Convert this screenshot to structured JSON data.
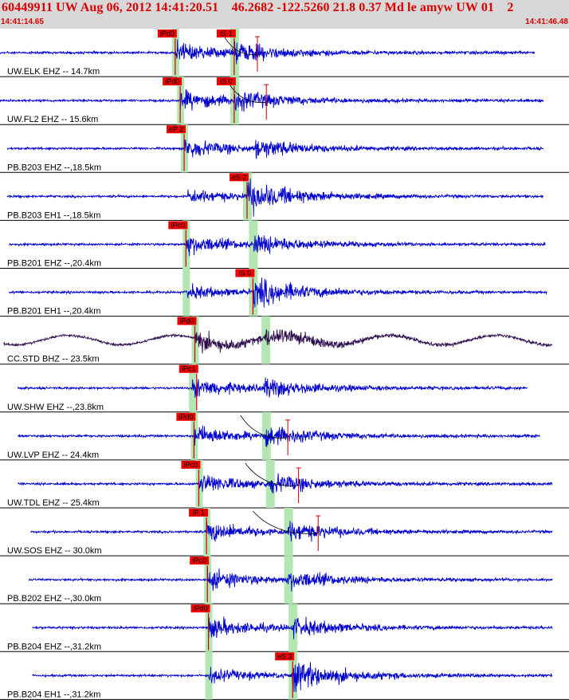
{
  "header": {
    "title": "60449911 UW Aug 06, 2012 14:41:20.51    46.2682 -122.5260 21.8 0.37 Md le amyw UW 01    2",
    "time_start": "14:41:14.65",
    "time_end": "14:41:46.48"
  },
  "colors": {
    "background": "#ffffff",
    "header_bg": "#d8d8d8",
    "header_text": "#d80000",
    "trace_default": "#0000cc",
    "trace_broadband": "#2a0a4a",
    "pick_label_bg": "#ee0000",
    "pick_line": "#cc0000",
    "pick_band": "#b4e6b4",
    "separator": "#000000",
    "theoretical_curve": "#000000"
  },
  "chart_data": {
    "type": "seismogram",
    "x_axis": {
      "unit": "s",
      "range": [
        "14:41:14.65",
        "14:41:46.48"
      ],
      "start_seconds": 0,
      "end_seconds": 31.83
    },
    "y_axis": "one panel per channel (normalized amplitude)",
    "origin_time": "14:41:20.51",
    "panels": [
      {
        "label": "UW.ELK EHZ -- 14.7km",
        "station": "UW.ELK",
        "component": "EHZ",
        "distance_km": 14.7,
        "trace_start_s": 0.0,
        "trace_end_s": 29.9,
        "p_pick": {
          "label": "iPd0",
          "time_s": 9.8
        },
        "s_pick": {
          "label": "iS 1",
          "time_s": 13.1
        },
        "p_band_s": 9.8,
        "s_band_s": 13.1,
        "coda_s": 14.4,
        "curve": true,
        "trace": "default"
      },
      {
        "label": "UW.FL2 EHZ -- 15.6km",
        "station": "UW.FL2",
        "component": "EHZ",
        "distance_km": 15.6,
        "trace_start_s": 0.0,
        "trace_end_s": 30.4,
        "p_pick": {
          "label": "iPd0",
          "time_s": 10.08
        },
        "s_pick": {
          "label": "iS 0",
          "time_s": 13.1
        },
        "p_band_s": 10.08,
        "s_band_s": 13.1,
        "coda_s": 14.9,
        "curve": true,
        "trace": "default"
      },
      {
        "label": "PB.B203 EHZ --,18.5km",
        "station": "PB.B203",
        "component": "EHZ",
        "distance_km": 18.5,
        "trace_start_s": 0.4,
        "trace_end_s": 30.4,
        "p_pick": {
          "label": "eP 2",
          "time_s": 10.3
        },
        "s_pick": null,
        "p_band_s": 10.3,
        "s_band_s": null,
        "coda_s": null,
        "curve": false,
        "trace": "default"
      },
      {
        "label": "PB.B203 EH1 --,18.5km",
        "station": "PB.B203",
        "component": "EH1",
        "distance_km": 18.5,
        "trace_start_s": 0.4,
        "trace_end_s": 30.4,
        "p_pick": null,
        "s_pick": {
          "label": "eS 2",
          "time_s": 13.82
        },
        "p_band_s": null,
        "s_band_s": 13.82,
        "coda_s": null,
        "curve": false,
        "trace": "default"
      },
      {
        "label": "PB.B201 EHZ --,20.4km",
        "station": "PB.B201",
        "component": "EHZ",
        "distance_km": 20.4,
        "trace_start_s": 0.5,
        "trace_end_s": 30.5,
        "p_pick": {
          "label": "iPc0",
          "time_s": 10.4
        },
        "s_pick": null,
        "p_band_s": 10.4,
        "s_band_s": 14.15,
        "coda_s": null,
        "curve": false,
        "trace": "default"
      },
      {
        "label": "PB.B201 EH1 --,20.4km",
        "station": "PB.B201",
        "component": "EH1",
        "distance_km": 20.4,
        "trace_start_s": 0.5,
        "trace_end_s": 30.6,
        "p_pick": null,
        "s_pick": {
          "label": "iS 0",
          "time_s": 14.15
        },
        "p_band_s": 10.4,
        "s_band_s": 14.15,
        "coda_s": null,
        "curve": false,
        "trace": "default"
      },
      {
        "label": "CC.STD BHZ -- 23.5km",
        "station": "CC.STD",
        "component": "BHZ",
        "distance_km": 23.5,
        "trace_start_s": 0.2,
        "trace_end_s": 30.9,
        "p_pick": {
          "label": "iPd0",
          "time_s": 10.9
        },
        "s_pick": null,
        "p_band_s": 10.9,
        "s_band_s": 14.85,
        "coda_s": null,
        "curve": false,
        "trace": "broadband"
      },
      {
        "label": "UW.SHW EHZ --,23.8km",
        "station": "UW.SHW",
        "component": "EHZ",
        "distance_km": 23.8,
        "trace_start_s": 1.0,
        "trace_end_s": 29.5,
        "p_pick": {
          "label": "iPc1",
          "time_s": 11.0
        },
        "s_pick": null,
        "p_band_s": 10.75,
        "s_band_s": null,
        "coda_s": null,
        "curve": false,
        "trace": "default"
      },
      {
        "label": "UW.LVP EHZ -- 24.4km",
        "station": "UW.LVP",
        "component": "EHZ",
        "distance_km": 24.4,
        "trace_start_s": 1.0,
        "trace_end_s": 30.2,
        "p_pick": {
          "label": "iPd0",
          "time_s": 10.85
        },
        "s_pick": null,
        "p_band_s": 10.85,
        "s_band_s": 14.88,
        "coda_s": 16.1,
        "curve": true,
        "trace": "default"
      },
      {
        "label": "UW.TDL EHZ -- 25.4km",
        "station": "UW.TDL",
        "component": "EHZ",
        "distance_km": 25.4,
        "trace_start_s": 1.0,
        "trace_end_s": 30.9,
        "p_pick": {
          "label": "iPc0",
          "time_s": 11.12
        },
        "s_pick": null,
        "p_band_s": 11.12,
        "s_band_s": 15.1,
        "coda_s": 16.7,
        "curve": true,
        "trace": "default"
      },
      {
        "label": "UW.SOS EHZ -- 30.0km",
        "station": "UW.SOS",
        "component": "EHZ",
        "distance_km": 30.0,
        "trace_start_s": 1.7,
        "trace_end_s": 30.9,
        "p_pick": {
          "label": "iP 1",
          "time_s": 11.55
        },
        "s_pick": null,
        "p_band_s": 11.55,
        "s_band_s": 16.12,
        "coda_s": 17.8,
        "curve": true,
        "trace": "default"
      },
      {
        "label": "PB.B202 EHZ --,30.0km",
        "station": "PB.B202",
        "component": "EHZ",
        "distance_km": 30.0,
        "trace_start_s": 1.6,
        "trace_end_s": 30.9,
        "p_pick": {
          "label": "iPc0",
          "time_s": 11.6
        },
        "s_pick": null,
        "p_band_s": 11.6,
        "s_band_s": 16.12,
        "coda_s": null,
        "curve": false,
        "trace": "default"
      },
      {
        "label": "PB.B204 EHZ --,31.2km",
        "station": "PB.B204",
        "component": "EHZ",
        "distance_km": 31.2,
        "trace_start_s": 1.8,
        "trace_end_s": 30.9,
        "p_pick": {
          "label": "iPd0",
          "time_s": 11.66
        },
        "s_pick": null,
        "p_band_s": 11.66,
        "s_band_s": 16.37,
        "coda_s": null,
        "curve": false,
        "trace": "default"
      },
      {
        "label": "PB.B204 EH1 --,31.2km",
        "station": "PB.B204",
        "component": "EH1",
        "distance_km": 31.2,
        "trace_start_s": 1.8,
        "trace_end_s": 30.9,
        "p_pick": null,
        "s_pick": {
          "label": "eS 3",
          "time_s": 16.37
        },
        "p_band_s": 11.66,
        "s_band_s": 16.37,
        "coda_s": null,
        "curve": false,
        "trace": "default"
      }
    ]
  }
}
